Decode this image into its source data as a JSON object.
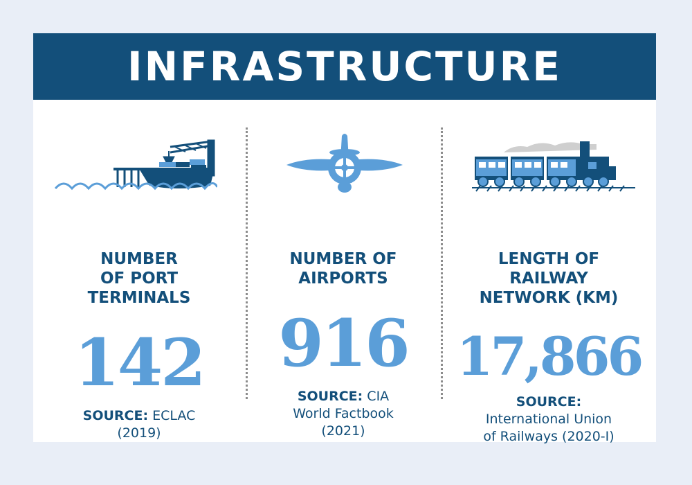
{
  "header": {
    "title": "INFRASTRUCTURE"
  },
  "stats": [
    {
      "icon": "ship-port-icon",
      "label": "NUMBER\nOF PORT\nTERMINALS",
      "value": "142",
      "source_label": "SOURCE:",
      "source_lines": [
        "ECLAC",
        "(2019)"
      ]
    },
    {
      "icon": "airplane-icon",
      "label": "NUMBER OF\nAIRPORTS",
      "value": "916",
      "source_label": "SOURCE:",
      "source_lines": [
        "CIA",
        "World Factbook",
        "(2021)"
      ]
    },
    {
      "icon": "train-icon",
      "label": "LENGTH OF\nRAILWAY\nNETWORK (KM)",
      "value": "17,866",
      "source_label": "SOURCE:",
      "source_lines": [
        "International Union",
        "of Railways (2020-I)"
      ]
    }
  ],
  "colors": {
    "navy": "#134f7a",
    "accent_blue": "#5b9ed8",
    "background": "#e9eef7"
  }
}
